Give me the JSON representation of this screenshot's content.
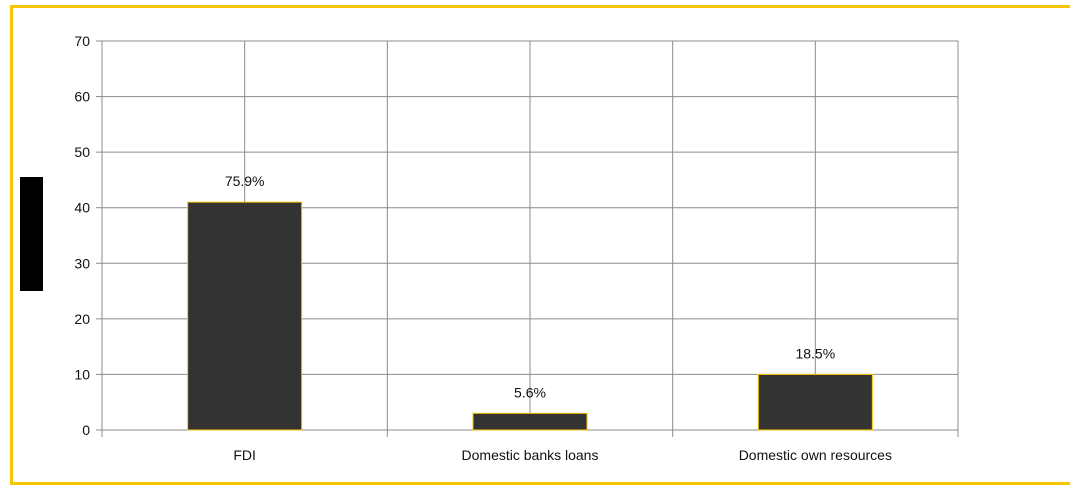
{
  "chart_data": {
    "type": "bar",
    "categories": [
      "FDI",
      "Domestic banks loans",
      "Domestic own resources"
    ],
    "values": [
      41,
      3,
      10
    ],
    "data_labels": [
      "75.9%",
      "5.6%",
      "18.5%"
    ],
    "ylim": [
      0,
      70
    ],
    "yticks": [
      0,
      10,
      20,
      30,
      40,
      50,
      60,
      70
    ],
    "grid": true,
    "bar_color": "#333333",
    "bar_edge_color": "#f7c600",
    "frame_color": "#f7c600"
  }
}
